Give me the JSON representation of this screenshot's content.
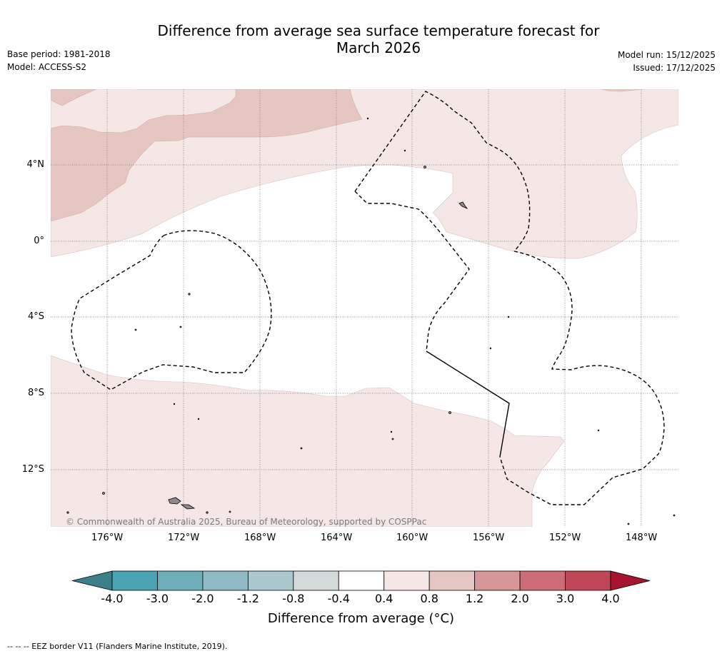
{
  "title": {
    "line1": "Difference from average sea surface temperature forecast for",
    "line2": "March 2026"
  },
  "meta_left": {
    "base_period": "Base period: 1981-2018",
    "model": "Model: ACCESS-S2"
  },
  "meta_right": {
    "model_run": "Model run: 15/12/2025",
    "issued": "Issued: 17/12/2025"
  },
  "map": {
    "longitude_labels": [
      "176°W",
      "172°W",
      "168°W",
      "164°W",
      "160°W",
      "156°W",
      "152°W",
      "148°W"
    ],
    "latitude_labels": [
      "4°N",
      "0°",
      "4°S",
      "8°S",
      "12°S"
    ],
    "copyright": "© Commonwealth of Australia 2025, Bureau of Meteorology, supported by COSPPac",
    "colors": {
      "anom_0_4_0_8": "#f4e7e6",
      "anom_0_8_1_2": "#e6c6c2",
      "background": "#ffffff",
      "land": "#8c8c8c"
    }
  },
  "colorbar": {
    "ticks": [
      "-4.0",
      "-3.0",
      "-2.0",
      "-1.2",
      "-0.8",
      "-0.4",
      "0.4",
      "0.8",
      "1.2",
      "2.0",
      "3.0",
      "4.0"
    ],
    "colors": [
      "#4aa3b3",
      "#6eaebb",
      "#8fbac5",
      "#aac8ce",
      "#d3d9d9",
      "#ffffff",
      "#f4e7e6",
      "#e6c6c2",
      "#d7969a",
      "#cb6c77",
      "#bf4656"
    ],
    "under_color": "#3a7f8a",
    "over_color": "#a51530",
    "label": "Difference from average (°C)"
  },
  "footnote": "--  --  -- EEZ border V11 (Flanders Marine Institute, 2019)."
}
